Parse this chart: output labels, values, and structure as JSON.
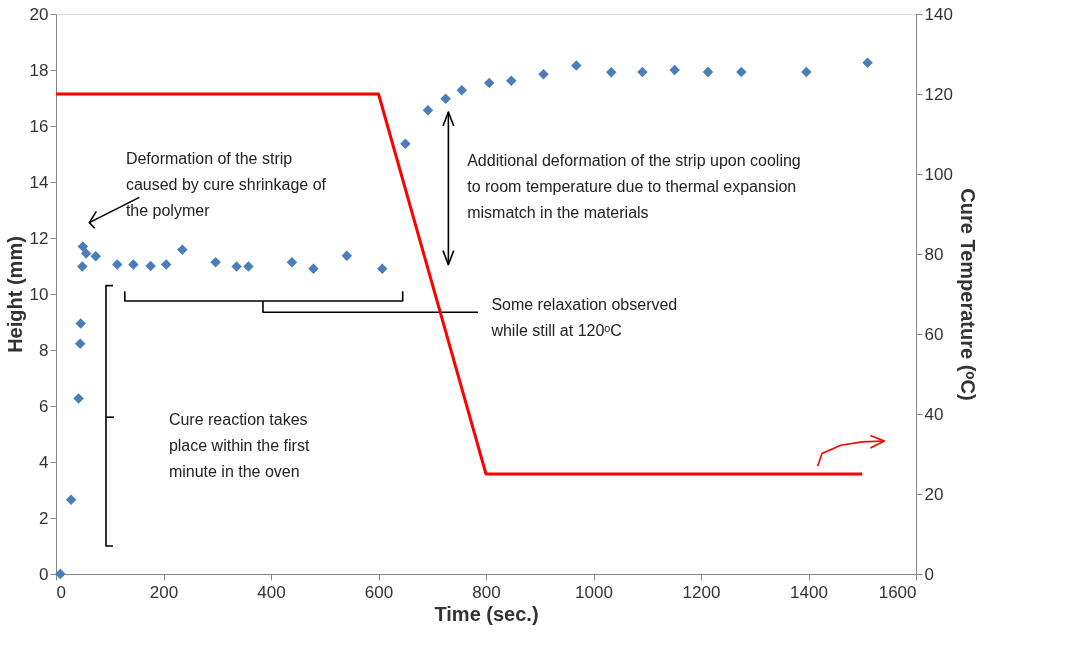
{
  "chart_data": {
    "type": "scatter",
    "xlabel": "Time (sec.)",
    "ylabel": "Height (mm)",
    "y2label": "Cure Temperature (ᵒC)",
    "xlim": [
      0,
      1600
    ],
    "xticks": [
      0,
      200,
      400,
      600,
      800,
      1000,
      1200,
      1400,
      1600
    ],
    "ylim": [
      0,
      20
    ],
    "yticks": [
      0,
      2,
      4,
      6,
      8,
      10,
      12,
      14,
      16,
      18,
      20
    ],
    "y2lim": [
      0,
      140
    ],
    "y2ticks": [
      0,
      20,
      40,
      60,
      80,
      100,
      120,
      140
    ],
    "marker": "diamond",
    "series": [
      {
        "color": "#4a7ebb",
        "x": [
          8,
          28,
          42,
          45,
          46,
          49,
          50,
          56,
          74,
          114,
          144,
          176,
          205,
          235,
          297,
          336,
          358,
          439,
          479,
          541,
          607,
          650,
          692,
          725,
          755,
          806,
          847,
          907,
          968,
          1033,
          1091,
          1151,
          1213,
          1275,
          1396,
          1510
        ],
        "values": [
          0.0,
          2.65,
          6.27,
          8.22,
          8.95,
          10.98,
          11.7,
          11.45,
          11.35,
          11.05,
          11.05,
          11.0,
          11.05,
          11.58,
          11.13,
          10.98,
          10.98,
          11.13,
          10.9,
          11.37,
          10.9,
          15.37,
          16.56,
          16.97,
          17.28,
          17.54,
          17.62,
          17.85,
          18.16,
          17.92,
          17.93,
          18.0,
          17.93,
          17.93,
          17.93,
          18.26
        ]
      },
      {
        "type": "line",
        "axis": "y2",
        "color": "#ff0000",
        "marker": "none",
        "line_style": "solid",
        "x": [
          0,
          600,
          800,
          1500
        ],
        "values": [
          120,
          120,
          25,
          25
        ]
      }
    ],
    "annotations": [
      "Deformation of the strip\ncaused by cure shrinkage of\nthe polymer",
      "Cure reaction takes\nplace within the first\nminute in the oven",
      "Additional deformation of the strip upon cooling\nto room temperature due to thermal expansion\nmismatch in the materials",
      "Some relaxation observed\nwhile still at 120ᵒC"
    ]
  }
}
